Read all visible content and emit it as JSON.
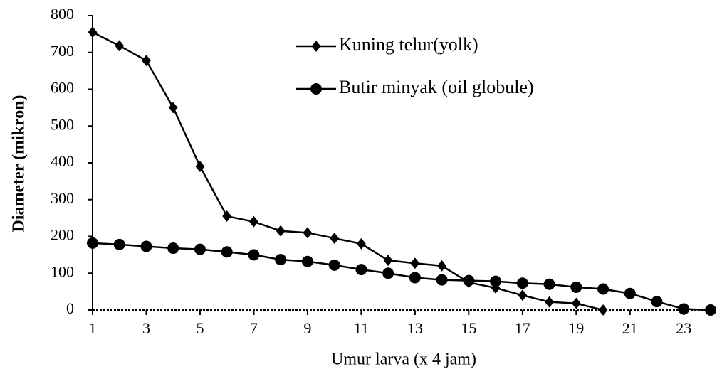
{
  "chart_data": {
    "type": "line",
    "x": [
      1,
      2,
      3,
      4,
      5,
      6,
      7,
      8,
      9,
      10,
      11,
      12,
      13,
      14,
      15,
      16,
      17,
      18,
      19,
      20,
      21,
      22,
      23,
      24
    ],
    "series": [
      {
        "name": "Kuning telur(yolk)",
        "color": "#000000",
        "marker": "diamond",
        "values": [
          755,
          718,
          678,
          550,
          390,
          255,
          240,
          215,
          210,
          195,
          180,
          135,
          127,
          120,
          75,
          60,
          40,
          22,
          18,
          0,
          null,
          null,
          null,
          null
        ]
      },
      {
        "name": "Butir minyak (oil globule)",
        "color": "#000000",
        "marker": "circle",
        "values": [
          182,
          178,
          173,
          168,
          165,
          158,
          150,
          137,
          132,
          122,
          110,
          100,
          88,
          82,
          80,
          78,
          73,
          70,
          62,
          57,
          45,
          23,
          3,
          0
        ]
      }
    ],
    "xlabel": "Umur larva (x 4 jam)",
    "ylabel": "Diameter (mikron)",
    "xlim": [
      1,
      24
    ],
    "xticks": [
      1,
      3,
      5,
      7,
      9,
      11,
      13,
      15,
      17,
      19,
      21,
      23
    ],
    "ylim": [
      0,
      800
    ],
    "yticks": [
      0,
      100,
      200,
      300,
      400,
      500,
      600,
      700,
      800
    ],
    "grid": false,
    "legend": "top-right"
  }
}
